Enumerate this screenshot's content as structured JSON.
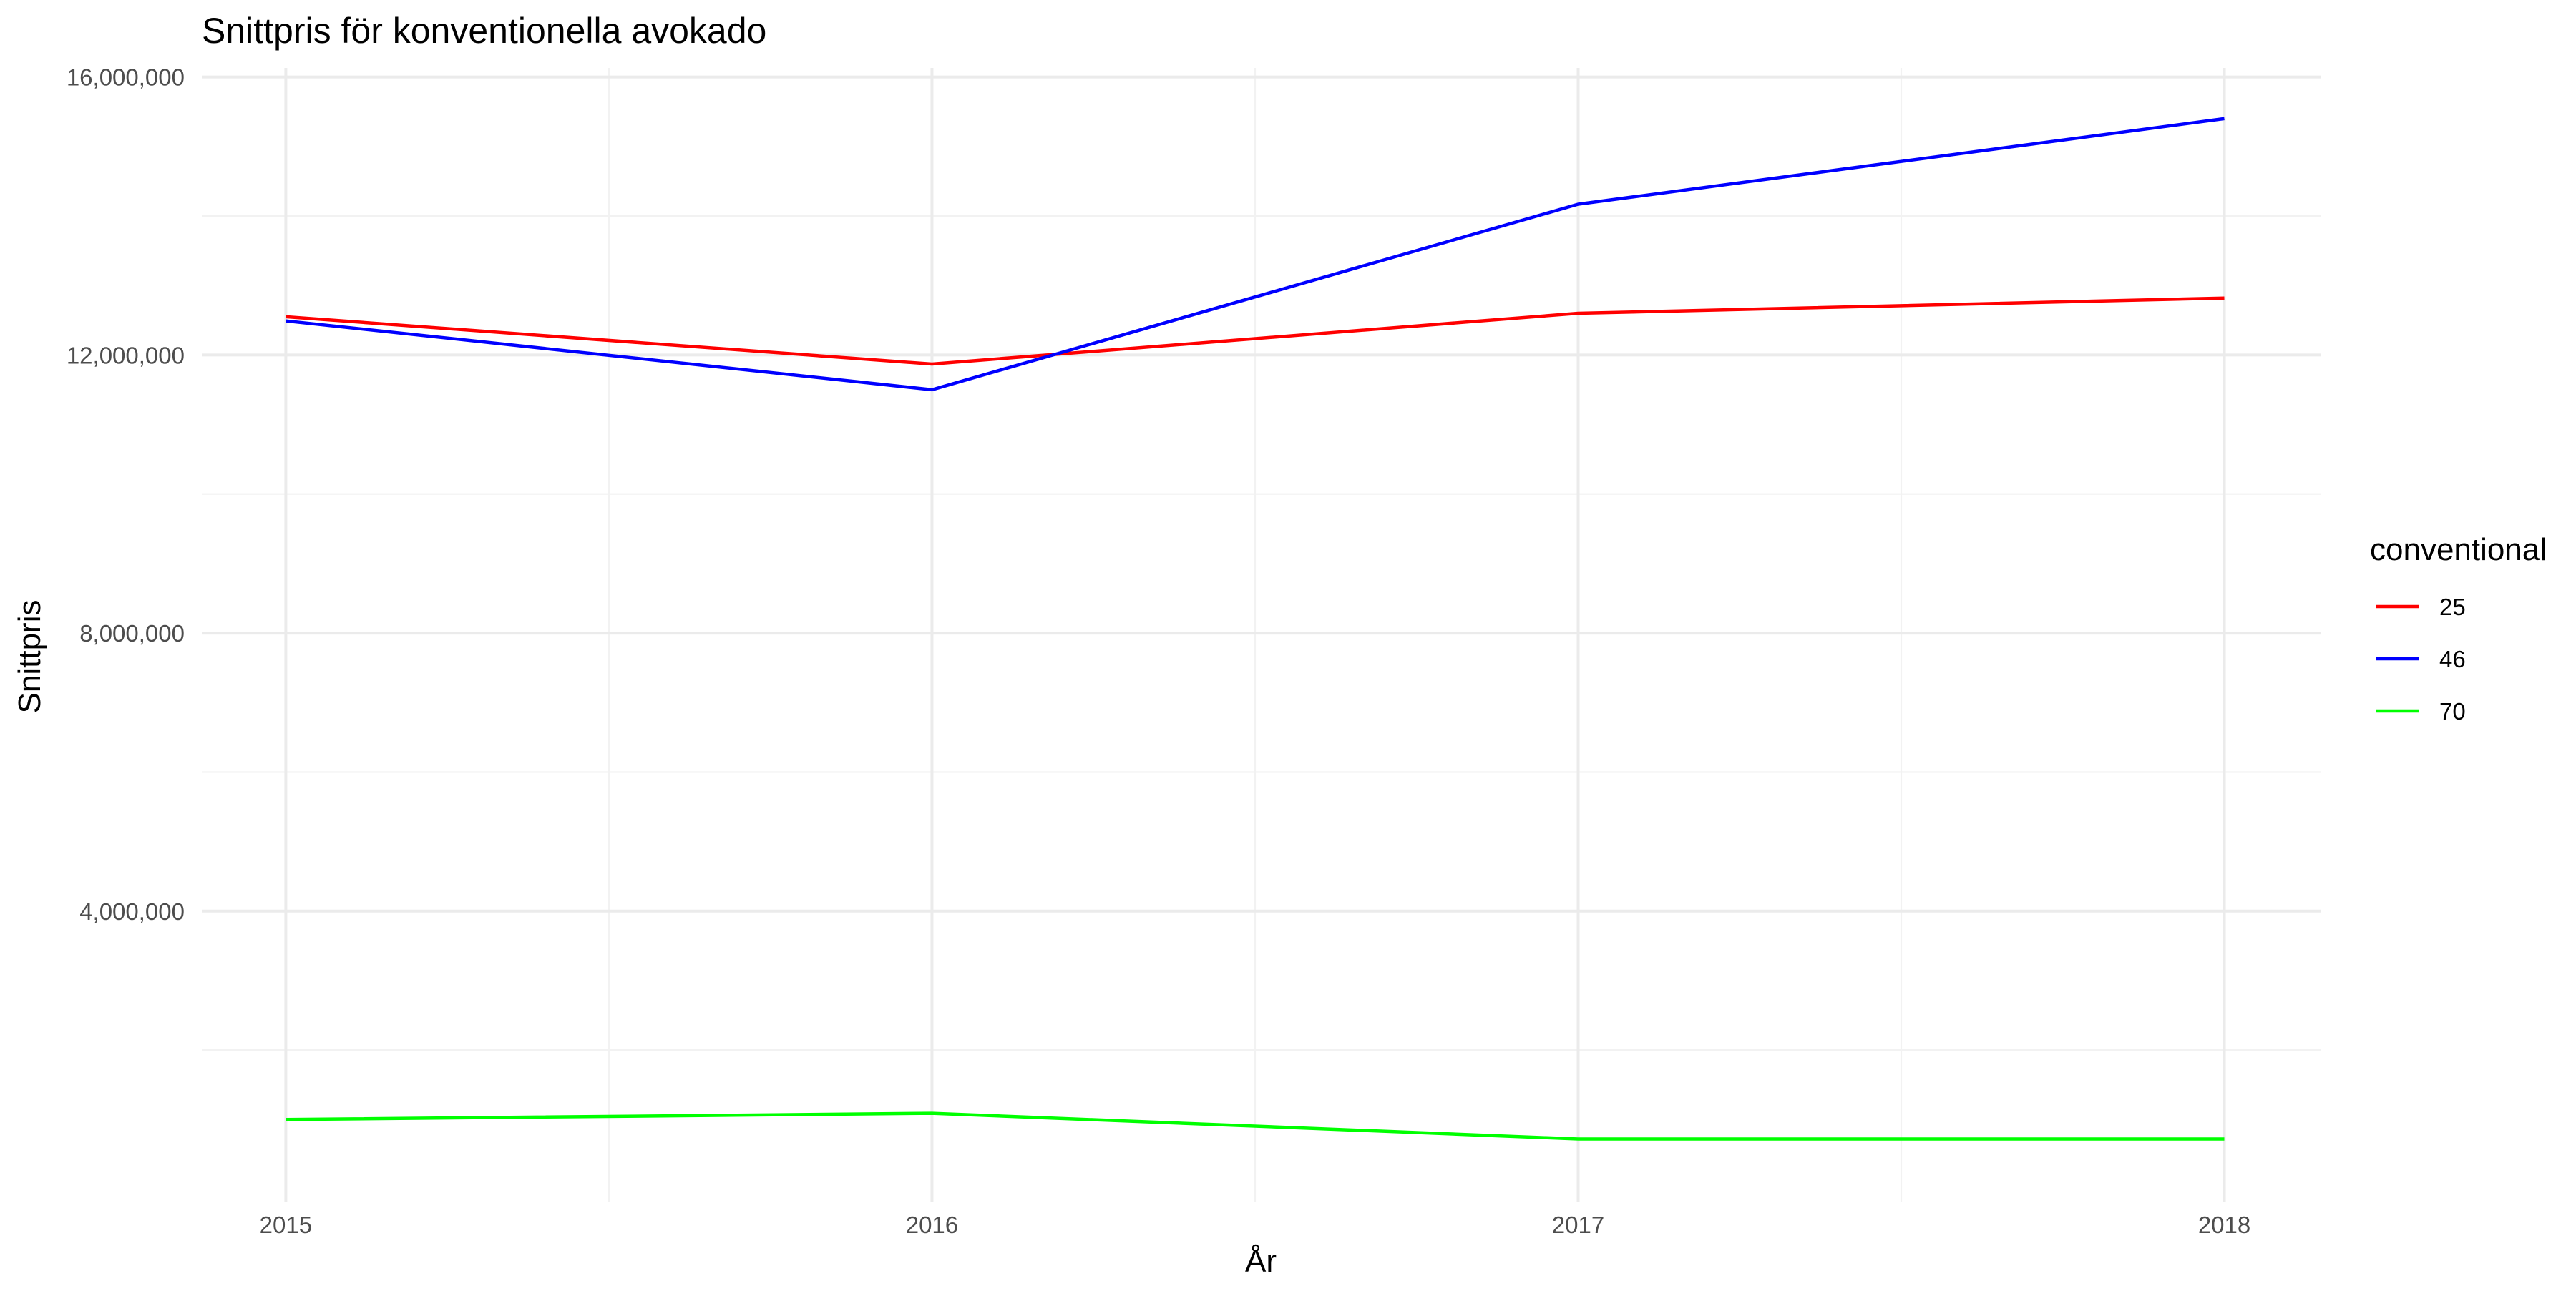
{
  "chart_data": {
    "type": "line",
    "title": "Snittpris för konventionella avokado",
    "xlabel": "År",
    "ylabel": "Snittpris",
    "x": [
      2015,
      2016,
      2017,
      2018
    ],
    "xticks": [
      2015,
      2016,
      2017,
      2018
    ],
    "xlim": [
      2014.87,
      2018.15
    ],
    "ylim": [
      -180000,
      16130000
    ],
    "yticks": [
      4000000,
      8000000,
      12000000,
      16000000
    ],
    "ytick_labels": [
      "4,000,000",
      "8,000,000",
      "12,000,000",
      "16,000,000"
    ],
    "grid": true,
    "legend": {
      "title": "conventional",
      "position": "right"
    },
    "series": [
      {
        "name": "25",
        "color": "#ff0000",
        "values": [
          12550000,
          11870000,
          12600000,
          12820000
        ]
      },
      {
        "name": "46",
        "color": "#0000ff",
        "values": [
          12490000,
          11500000,
          14170000,
          15400000
        ]
      },
      {
        "name": "70",
        "color": "#00ff00",
        "values": [
          1000000,
          1090000,
          720000,
          720000
        ]
      }
    ]
  }
}
